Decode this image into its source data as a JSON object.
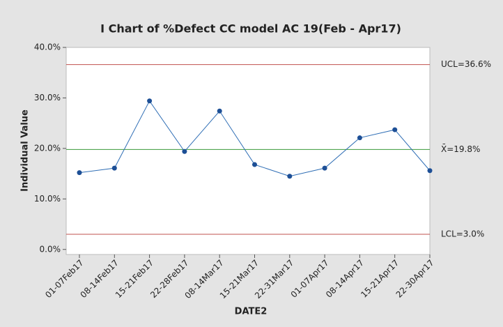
{
  "chart_data": {
    "type": "line",
    "title": "I Chart of %Defect CC model AC 19(Feb - Apr17)",
    "x_label": "DATE2",
    "y_label": "Individual Value",
    "categories": [
      "01-07Feb17",
      "08-14Feb17",
      "15-21Feb17",
      "22-28Feb17",
      "08-14Mar17",
      "15-21Mar17",
      "22-31Mar17",
      "01-07Apr17",
      "08-14Apr17",
      "15-21Apr17",
      "22-30Apr17"
    ],
    "series": [
      {
        "name": "%Defect",
        "color": "#2f6eb5",
        "values": [
          15.2,
          16.1,
          29.4,
          19.4,
          27.4,
          16.8,
          14.5,
          16.1,
          22.1,
          23.7,
          15.6
        ]
      }
    ],
    "control_lines": [
      {
        "value": 36.6,
        "label": "UCL=36.6%",
        "color": "#c0504d"
      },
      {
        "value": 19.8,
        "label": "X̄=19.8%",
        "color": "#3a9a3a"
      },
      {
        "value": 3.0,
        "label": "LCL=3.0%",
        "color": "#c0504d"
      }
    ],
    "ylim": [
      -1,
      40
    ],
    "yticks": [
      {
        "value": 0,
        "label": "0.0%"
      },
      {
        "value": 10,
        "label": "10.0%"
      },
      {
        "value": 20,
        "label": "20.0%"
      },
      {
        "value": 30,
        "label": "30.0%"
      },
      {
        "value": 40,
        "label": "40.0%"
      }
    ]
  }
}
